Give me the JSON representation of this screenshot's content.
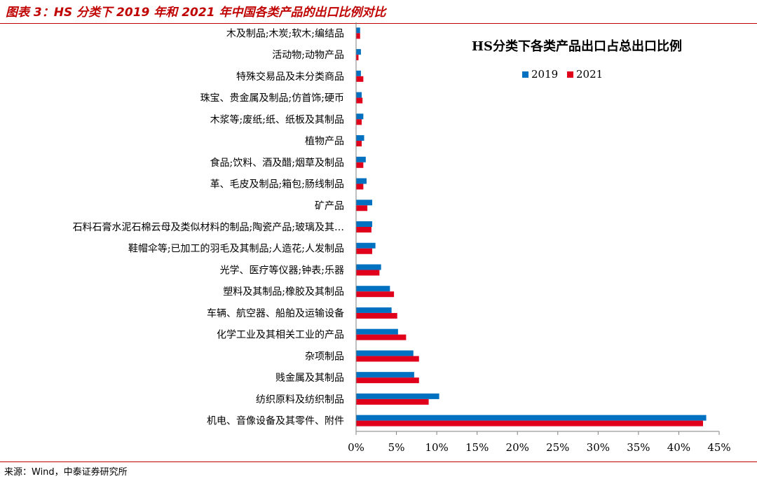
{
  "figure_title": "图表 3：HS 分类下 2019 年和 2021 年中国各类产品的出口比例对比",
  "source": "来源：Wind，中泰证券研究所",
  "colors": {
    "series_2019": "#0070c0",
    "series_2021": "#e0001b",
    "accent": "#c00000"
  },
  "chart_data": {
    "type": "bar",
    "orientation": "horizontal",
    "title": "HS分类下各类产品出口占总出口比例",
    "xlabel": "",
    "ylabel": "",
    "xlim": [
      0,
      45
    ],
    "x_ticks": [
      "0%",
      "5%",
      "10%",
      "15%",
      "20%",
      "25%",
      "30%",
      "35%",
      "40%",
      "45%"
    ],
    "legend_position": "top-right",
    "grid": false,
    "categories": [
      "木及制品;木炭;软木;编结品",
      "活动物;动物产品",
      "特殊交易品及未分类商品",
      "珠宝、贵金属及制品;仿首饰;硬币",
      "木浆等;废纸;纸、纸板及其制品",
      "植物产品",
      "食品;饮料、酒及醋;烟草及制品",
      "革、毛皮及制品;箱包;肠线制品",
      "矿产品",
      "石料石膏水泥石棉云母及类似材料的制品;陶瓷产品;玻璃及其…",
      "鞋帽伞等;已加工的羽毛及其制品;人造花;人发制品",
      "光学、医疗等仪器;钟表;乐器",
      "塑料及其制品;橡胶及其制品",
      "车辆、航空器、船舶及运输设备",
      "化学工业及其相关工业的产品",
      "杂项制品",
      "贱金属及其制品",
      "纺织原料及纺织制品",
      "机电、音像设备及其零件、附件"
    ],
    "series": [
      {
        "name": "2019",
        "values": [
          0.5,
          0.6,
          0.6,
          0.7,
          0.9,
          1.0,
          1.2,
          1.3,
          2.0,
          2.0,
          2.4,
          3.1,
          4.2,
          4.4,
          5.2,
          7.1,
          7.2,
          10.3,
          43.4
        ]
      },
      {
        "name": "2021",
        "values": [
          0.5,
          0.3,
          0.9,
          0.8,
          0.7,
          0.7,
          0.9,
          0.9,
          1.4,
          1.9,
          2.0,
          2.9,
          4.7,
          5.1,
          6.2,
          7.8,
          7.8,
          9.0,
          43.0
        ]
      }
    ]
  }
}
